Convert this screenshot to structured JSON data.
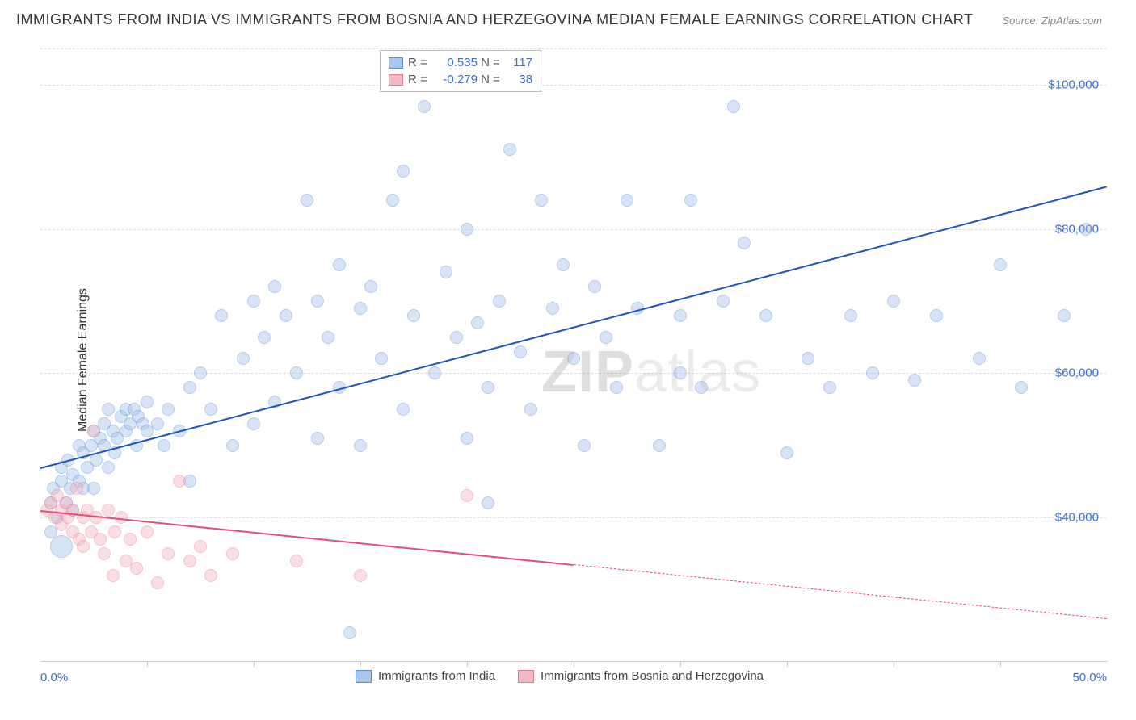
{
  "title": "IMMIGRANTS FROM INDIA VS IMMIGRANTS FROM BOSNIA AND HERZEGOVINA MEDIAN FEMALE EARNINGS CORRELATION CHART",
  "source": "Source: ZipAtlas.com",
  "ylabel": "Median Female Earnings",
  "watermark_a": "ZIP",
  "watermark_b": "atlas",
  "chart": {
    "type": "scatter",
    "background_color": "#ffffff",
    "grid_color": "#dddddd",
    "axis_color": "#cccccc",
    "label_color": "#3b6fd6",
    "text_color": "#333333",
    "xlim": [
      0,
      50
    ],
    "ylim": [
      20000,
      105000
    ],
    "x_ticks": [
      0,
      50
    ],
    "x_tick_labels": [
      "0.0%",
      "50.0%"
    ],
    "x_minor_ticks": [
      5,
      10,
      15,
      20,
      25,
      30,
      35,
      40,
      45
    ],
    "y_ticks": [
      40000,
      60000,
      80000,
      100000
    ],
    "y_tick_labels": [
      "$40,000",
      "$60,000",
      "$80,000",
      "$100,000"
    ],
    "marker_radius": 8,
    "marker_opacity": 0.45,
    "marker_stroke_opacity": 0.8,
    "line_width": 2,
    "series": [
      {
        "name": "Immigrants from India",
        "color_fill": "#a8c5ec",
        "color_stroke": "#5b8ad4",
        "trend_color": "#1c55c0",
        "R": "0.535",
        "N": "117",
        "trend": {
          "x1": 0,
          "y1": 47000,
          "x2": 50,
          "y2": 86000,
          "dash_from_x": null
        },
        "points": [
          [
            0.5,
            42000
          ],
          [
            0.5,
            38000
          ],
          [
            0.6,
            44000
          ],
          [
            0.8,
            40000
          ],
          [
            1.0,
            45000
          ],
          [
            1.0,
            36000,
            14
          ],
          [
            1.0,
            47000
          ],
          [
            1.2,
            42000
          ],
          [
            1.3,
            48000
          ],
          [
            1.4,
            44000
          ],
          [
            1.5,
            46000
          ],
          [
            1.5,
            41000
          ],
          [
            1.8,
            50000
          ],
          [
            1.8,
            45000
          ],
          [
            2.0,
            44000
          ],
          [
            2.0,
            49000
          ],
          [
            2.2,
            47000
          ],
          [
            2.4,
            50000
          ],
          [
            2.5,
            44000
          ],
          [
            2.5,
            52000
          ],
          [
            2.6,
            48000
          ],
          [
            2.8,
            51000
          ],
          [
            3.0,
            50000
          ],
          [
            3.0,
            53000
          ],
          [
            3.2,
            47000
          ],
          [
            3.2,
            55000
          ],
          [
            3.4,
            52000
          ],
          [
            3.5,
            49000
          ],
          [
            3.6,
            51000
          ],
          [
            3.8,
            54000
          ],
          [
            4.0,
            52000
          ],
          [
            4.0,
            55000
          ],
          [
            4.2,
            53000
          ],
          [
            4.4,
            55000
          ],
          [
            4.5,
            50000
          ],
          [
            4.6,
            54000
          ],
          [
            4.8,
            53000
          ],
          [
            5.0,
            52000
          ],
          [
            5.0,
            56000
          ],
          [
            5.5,
            53000
          ],
          [
            5.8,
            50000
          ],
          [
            6.0,
            55000
          ],
          [
            6.5,
            52000
          ],
          [
            7.0,
            58000
          ],
          [
            7.0,
            45000
          ],
          [
            7.5,
            60000
          ],
          [
            8.0,
            55000
          ],
          [
            8.5,
            68000
          ],
          [
            9.0,
            50000
          ],
          [
            9.5,
            62000
          ],
          [
            10.0,
            53000
          ],
          [
            10.0,
            70000
          ],
          [
            10.5,
            65000
          ],
          [
            11.0,
            72000
          ],
          [
            11.0,
            56000
          ],
          [
            11.5,
            68000
          ],
          [
            12.0,
            60000
          ],
          [
            12.5,
            84000
          ],
          [
            13.0,
            70000
          ],
          [
            13.0,
            51000
          ],
          [
            13.5,
            65000
          ],
          [
            14.0,
            75000
          ],
          [
            14.0,
            58000
          ],
          [
            14.5,
            24000
          ],
          [
            15.0,
            69000
          ],
          [
            15.0,
            50000
          ],
          [
            15.5,
            72000
          ],
          [
            16.0,
            62000
          ],
          [
            16.5,
            84000
          ],
          [
            17.0,
            55000
          ],
          [
            17.0,
            88000
          ],
          [
            17.5,
            68000
          ],
          [
            18.0,
            97000
          ],
          [
            18.5,
            60000
          ],
          [
            19.0,
            74000
          ],
          [
            19.5,
            65000
          ],
          [
            20.0,
            80000
          ],
          [
            20.0,
            51000
          ],
          [
            20.5,
            67000
          ],
          [
            21.0,
            58000
          ],
          [
            21.0,
            42000
          ],
          [
            21.5,
            70000
          ],
          [
            22.0,
            91000
          ],
          [
            22.5,
            63000
          ],
          [
            23.0,
            55000
          ],
          [
            23.5,
            84000
          ],
          [
            24.0,
            69000
          ],
          [
            24.5,
            75000
          ],
          [
            25.0,
            62000
          ],
          [
            25.5,
            50000
          ],
          [
            26.0,
            72000
          ],
          [
            26.5,
            65000
          ],
          [
            27.0,
            58000
          ],
          [
            27.5,
            84000
          ],
          [
            28.0,
            69000
          ],
          [
            29.0,
            50000
          ],
          [
            30.0,
            68000
          ],
          [
            30.0,
            60000
          ],
          [
            30.5,
            84000
          ],
          [
            31.0,
            58000
          ],
          [
            32.0,
            70000
          ],
          [
            32.5,
            97000
          ],
          [
            33.0,
            78000
          ],
          [
            34.0,
            68000
          ],
          [
            35.0,
            49000
          ],
          [
            36.0,
            62000
          ],
          [
            37.0,
            58000
          ],
          [
            38.0,
            68000
          ],
          [
            39.0,
            60000
          ],
          [
            40.0,
            70000
          ],
          [
            41.0,
            59000
          ],
          [
            42.0,
            68000
          ],
          [
            44.0,
            62000
          ],
          [
            45.0,
            75000
          ],
          [
            46.0,
            58000
          ],
          [
            48.0,
            68000
          ],
          [
            49.0,
            80000
          ]
        ]
      },
      {
        "name": "Immigrants from Bosnia and Herzegovina",
        "color_fill": "#f3b8c3",
        "color_stroke": "#e77a91",
        "trend_color": "#e94b73",
        "R": "-0.279",
        "N": "38",
        "trend": {
          "x1": 0,
          "y1": 41000,
          "x2": 50,
          "y2": 26000,
          "dash_from_x": 25
        },
        "points": [
          [
            0.3,
            41000
          ],
          [
            0.5,
            42000
          ],
          [
            0.7,
            40000
          ],
          [
            0.8,
            43000
          ],
          [
            1.0,
            41000
          ],
          [
            1.0,
            39000
          ],
          [
            1.2,
            42000
          ],
          [
            1.3,
            40000
          ],
          [
            1.5,
            38000
          ],
          [
            1.5,
            41000
          ],
          [
            1.7,
            44000
          ],
          [
            1.8,
            37000
          ],
          [
            2.0,
            40000
          ],
          [
            2.0,
            36000
          ],
          [
            2.2,
            41000
          ],
          [
            2.4,
            38000
          ],
          [
            2.5,
            52000
          ],
          [
            2.6,
            40000
          ],
          [
            2.8,
            37000
          ],
          [
            3.0,
            35000
          ],
          [
            3.2,
            41000
          ],
          [
            3.4,
            32000
          ],
          [
            3.5,
            38000
          ],
          [
            3.8,
            40000
          ],
          [
            4.0,
            34000
          ],
          [
            4.2,
            37000
          ],
          [
            4.5,
            33000
          ],
          [
            5.0,
            38000
          ],
          [
            5.5,
            31000
          ],
          [
            6.0,
            35000
          ],
          [
            6.5,
            45000
          ],
          [
            7.0,
            34000
          ],
          [
            7.5,
            36000
          ],
          [
            8.0,
            32000
          ],
          [
            9.0,
            35000
          ],
          [
            12.0,
            34000
          ],
          [
            15.0,
            32000
          ],
          [
            20.0,
            43000
          ]
        ]
      }
    ],
    "legend_top": {
      "rows": [
        {
          "swatch_fill": "#a8c5ec",
          "swatch_stroke": "#5b8ad4",
          "r_label": "R =",
          "r_val": "0.535",
          "n_label": "N =",
          "n_val": "117"
        },
        {
          "swatch_fill": "#f3b8c3",
          "swatch_stroke": "#e77a91",
          "r_label": "R =",
          "r_val": "-0.279",
          "n_label": "N =",
          "n_val": "38"
        }
      ]
    }
  }
}
